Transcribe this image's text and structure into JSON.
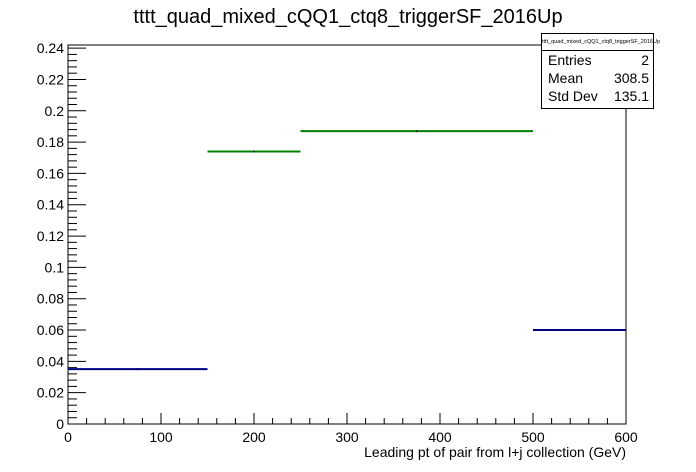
{
  "chart_data": {
    "type": "histogram",
    "title": "tttt_quad_mixed_cQQ1_ctq8_triggerSF_2016Up",
    "xlabel": "Leading pt of pair from l+j collection (GeV)",
    "ylabel": "",
    "xlim": [
      0,
      600
    ],
    "ylim": [
      0,
      0.242
    ],
    "xticks": [
      0,
      100,
      200,
      300,
      400,
      500,
      600
    ],
    "yticks": [
      0,
      0.02,
      0.04,
      0.06,
      0.08,
      0.1,
      0.12,
      0.14,
      0.16,
      0.18,
      0.2,
      0.22,
      0.24
    ],
    "grid": false,
    "series": [
      {
        "color": "#000080",
        "bins": [
          {
            "x0": 0,
            "x1": 150,
            "value": 0.035
          },
          {
            "x0": 500,
            "x1": 600,
            "value": 0.06
          }
        ]
      },
      {
        "color": "#008000",
        "bins": [
          {
            "x0": 150,
            "x1": 250,
            "value": 0.174
          },
          {
            "x0": 250,
            "x1": 500,
            "value": 0.187
          }
        ]
      }
    ]
  },
  "stats_box": {
    "title": "tttt_quad_mixed_cQQ1_ctq8_triggerSF_2016Up",
    "rows": [
      {
        "label": "Entries",
        "value": "2"
      },
      {
        "label": "Mean",
        "value": "308.5"
      },
      {
        "label": "Std Dev",
        "value": "135.1"
      }
    ]
  }
}
